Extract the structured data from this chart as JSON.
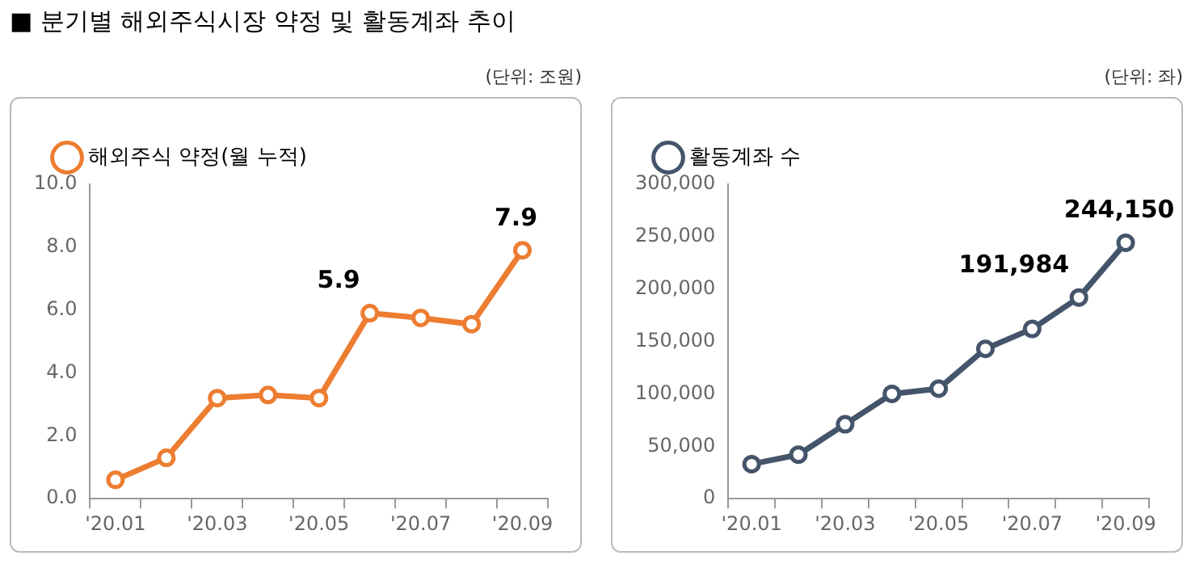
{
  "chart_data": [
    {
      "type": "line",
      "title": "■ 분기별 해외주식시장 약정 및 활동계좌 추이",
      "ylabel": "(단위: 조원)",
      "categories": [
        "'20.01",
        null,
        "'20.03",
        null,
        "'20.05",
        null,
        "'20.07",
        null,
        "'20.09"
      ],
      "series": [
        {
          "name": "해외주식 약정(월 누적)",
          "color": "#ed7d31",
          "values": [
            0.6,
            1.3,
            3.2,
            3.3,
            3.2,
            5.9,
            5.75,
            5.55,
            7.9
          ],
          "value_labels": [
            null,
            null,
            null,
            null,
            null,
            "5.9",
            null,
            null,
            "7.9"
          ]
        }
      ],
      "ylim": [
        0,
        10
      ],
      "yticks": [
        {
          "value": 0,
          "label": "0.0"
        },
        {
          "value": 2,
          "label": "2.0"
        },
        {
          "value": 4,
          "label": "4.0"
        },
        {
          "value": 6,
          "label": "6.0"
        },
        {
          "value": 8,
          "label": "8.0"
        },
        {
          "value": 10,
          "label": "10.0"
        }
      ],
      "grid": false,
      "legend": "top left",
      "marker": "circle",
      "line_style": "solid"
    },
    {
      "type": "line",
      "ylabel": "(단위: 좌)",
      "categories": [
        "'20.01",
        null,
        "'20.03",
        null,
        "'20.05",
        null,
        "'20.07",
        null,
        "'20.09"
      ],
      "series": [
        {
          "name": "활동계좌 수",
          "color": "#44546a",
          "values": [
            33000,
            42000,
            71000,
            100000,
            105000,
            143000,
            162000,
            191984,
            244150
          ],
          "value_labels": [
            null,
            null,
            null,
            null,
            null,
            null,
            null,
            "191,984",
            "244,150"
          ]
        }
      ],
      "ylim": [
        0,
        300000
      ],
      "yticks": [
        0,
        {
          "value": 50000,
          "label": "50,000"
        },
        {
          "value": 100000,
          "label": "100,000"
        },
        {
          "value": 150000,
          "label": "150,000"
        },
        {
          "value": 200000,
          "label": "200,000"
        },
        {
          "value": 250000,
          "label": "250,000"
        },
        {
          "value": 300000,
          "label": "300,000"
        }
      ],
      "grid": false,
      "legend": "top left",
      "marker": "circle",
      "line_style": "solid"
    }
  ]
}
